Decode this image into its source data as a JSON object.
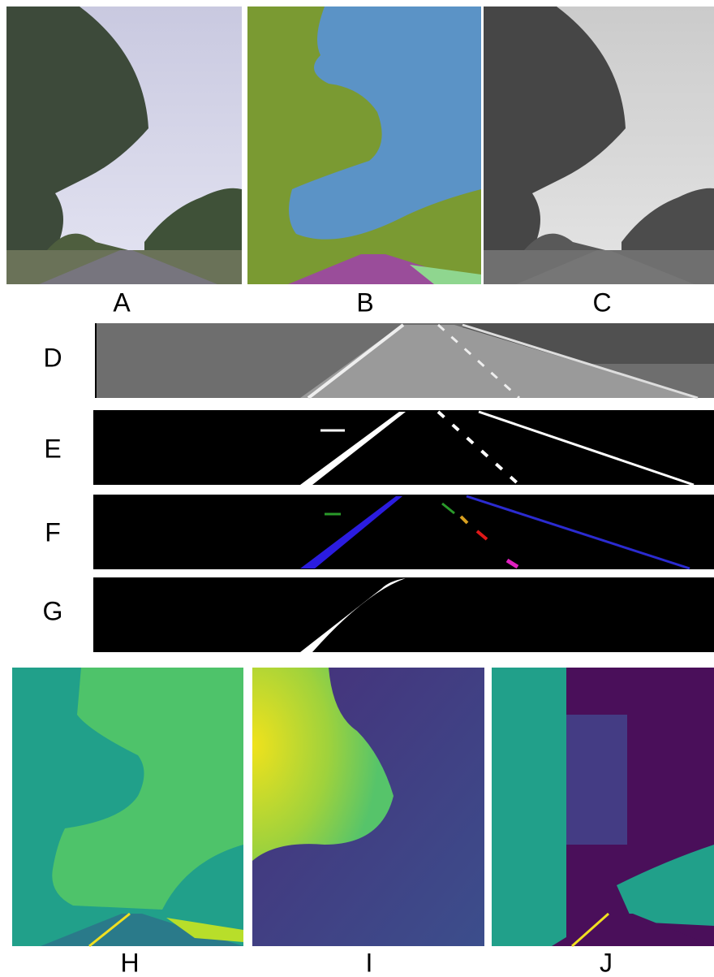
{
  "panels": [
    {
      "label": "A"
    },
    {
      "label": "B"
    },
    {
      "label": "C"
    },
    {
      "label": "D"
    },
    {
      "label": "E"
    },
    {
      "label": "F"
    },
    {
      "label": "G"
    },
    {
      "label": "H"
    },
    {
      "label": "I"
    },
    {
      "label": "J"
    }
  ]
}
